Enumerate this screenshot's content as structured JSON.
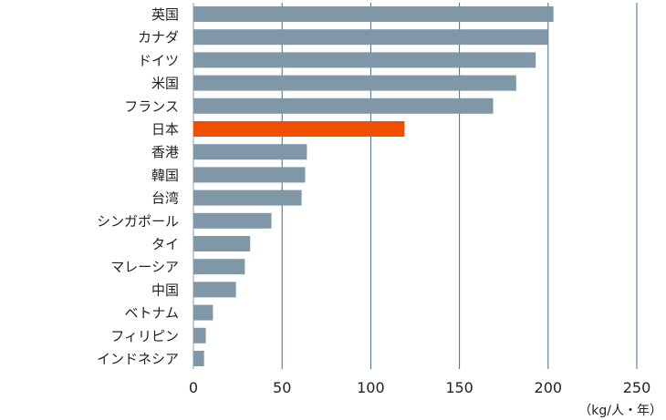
{
  "chart_data": {
    "type": "bar",
    "orientation": "horizontal",
    "categories": [
      "英国",
      "カナダ",
      "ドイツ",
      "米国",
      "フランス",
      "日本",
      "香港",
      "韓国",
      "台湾",
      "シンガポール",
      "タイ",
      "マレーシア",
      "中国",
      "ベトナム",
      "フィリピン",
      "インドネシア"
    ],
    "values": [
      203,
      200,
      193,
      182,
      169,
      119,
      64,
      63,
      61,
      44,
      32,
      29,
      24,
      11,
      7,
      6
    ],
    "highlight_category": "日本",
    "xlim": [
      0,
      250
    ],
    "x_ticks": [
      "0",
      "50",
      "100",
      "150",
      "200",
      "250"
    ],
    "unit_label": "（kg/人・年）",
    "grid": "vertical",
    "legend": "none",
    "colors": {
      "bar": "#8097a8",
      "highlight": "#f04e00",
      "grid": "#3f6a8a",
      "axis": "#999999"
    }
  }
}
